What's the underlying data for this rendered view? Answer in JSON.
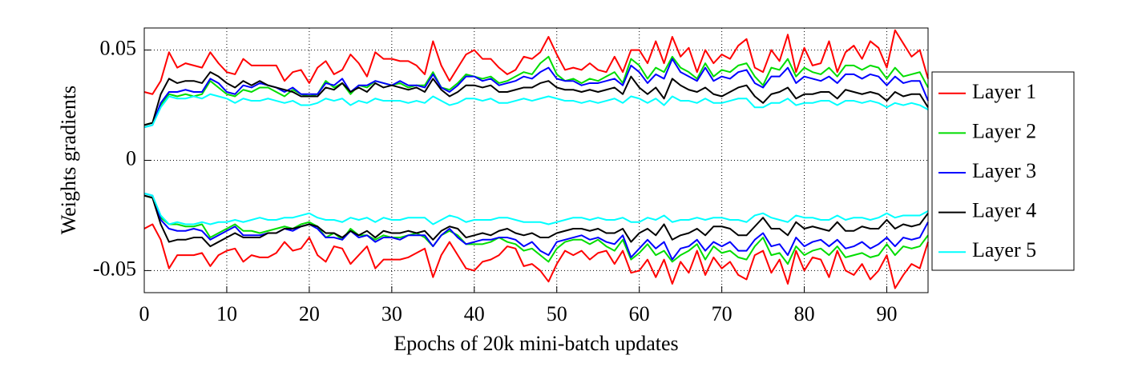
{
  "chart_data": {
    "type": "line",
    "xlabel": "Epochs of 20k mini-batch updates",
    "ylabel": "Weights gradients",
    "xlim": [
      0,
      95
    ],
    "xticks": [
      0,
      10,
      20,
      30,
      40,
      50,
      60,
      70,
      80,
      90
    ],
    "ylim": [
      -0.06,
      0.06
    ],
    "yticks": [
      -0.05,
      0,
      0.05
    ],
    "grid": true,
    "legend": "right",
    "x": [
      0,
      1,
      2,
      3,
      4,
      5,
      6,
      7,
      8,
      9,
      10,
      11,
      12,
      13,
      14,
      15,
      16,
      17,
      18,
      19,
      20,
      21,
      22,
      23,
      24,
      25,
      26,
      27,
      28,
      29,
      30,
      31,
      32,
      33,
      34,
      35,
      36,
      37,
      38,
      39,
      40,
      41,
      42,
      43,
      44,
      45,
      46,
      47,
      48,
      49,
      50,
      51,
      52,
      53,
      54,
      55,
      56,
      57,
      58,
      59,
      60,
      61,
      62,
      63,
      64,
      65,
      66,
      67,
      68,
      69,
      70,
      71,
      72,
      73,
      74,
      75,
      76,
      77,
      78,
      79,
      80,
      81,
      82,
      83,
      84,
      85,
      86,
      87,
      88,
      89,
      90,
      91,
      92,
      93,
      94,
      95
    ],
    "series": [
      {
        "name": "Layer 1",
        "color": "#ff0000",
        "values": [
          0.031,
          0.03,
          0.036,
          0.049,
          0.042,
          0.044,
          0.043,
          0.042,
          0.049,
          0.044,
          0.04,
          0.039,
          0.046,
          0.043,
          0.043,
          0.043,
          0.043,
          0.036,
          0.04,
          0.041,
          0.035,
          0.042,
          0.045,
          0.039,
          0.041,
          0.048,
          0.044,
          0.038,
          0.049,
          0.046,
          0.046,
          0.045,
          0.045,
          0.043,
          0.039,
          0.054,
          0.043,
          0.036,
          0.042,
          0.048,
          0.05,
          0.046,
          0.046,
          0.042,
          0.039,
          0.041,
          0.047,
          0.046,
          0.049,
          0.056,
          0.048,
          0.041,
          0.042,
          0.041,
          0.044,
          0.041,
          0.04,
          0.047,
          0.04,
          0.05,
          0.05,
          0.044,
          0.054,
          0.044,
          0.056,
          0.047,
          0.051,
          0.04,
          0.05,
          0.044,
          0.048,
          0.046,
          0.052,
          0.055,
          0.042,
          0.04,
          0.05,
          0.045,
          0.057,
          0.04,
          0.051,
          0.043,
          0.044,
          0.054,
          0.04,
          0.049,
          0.052,
          0.046,
          0.054,
          0.051,
          0.042,
          0.059,
          0.053,
          0.047,
          0.05,
          0.037
        ],
        "values_lower": [
          -0.031,
          -0.029,
          -0.036,
          -0.049,
          -0.043,
          -0.043,
          -0.043,
          -0.042,
          -0.048,
          -0.043,
          -0.041,
          -0.04,
          -0.046,
          -0.043,
          -0.044,
          -0.044,
          -0.042,
          -0.037,
          -0.041,
          -0.04,
          -0.035,
          -0.043,
          -0.046,
          -0.039,
          -0.04,
          -0.047,
          -0.043,
          -0.039,
          -0.049,
          -0.045,
          -0.045,
          -0.045,
          -0.044,
          -0.042,
          -0.04,
          -0.053,
          -0.043,
          -0.037,
          -0.043,
          -0.049,
          -0.05,
          -0.046,
          -0.045,
          -0.043,
          -0.039,
          -0.04,
          -0.048,
          -0.047,
          -0.05,
          -0.055,
          -0.047,
          -0.041,
          -0.043,
          -0.041,
          -0.045,
          -0.042,
          -0.041,
          -0.047,
          -0.041,
          -0.051,
          -0.05,
          -0.045,
          -0.053,
          -0.045,
          -0.056,
          -0.046,
          -0.051,
          -0.041,
          -0.052,
          -0.044,
          -0.049,
          -0.046,
          -0.052,
          -0.054,
          -0.043,
          -0.041,
          -0.051,
          -0.045,
          -0.056,
          -0.041,
          -0.05,
          -0.044,
          -0.045,
          -0.053,
          -0.041,
          -0.05,
          -0.052,
          -0.047,
          -0.054,
          -0.05,
          -0.043,
          -0.058,
          -0.052,
          -0.047,
          -0.049,
          -0.037
        ]
      },
      {
        "name": "Layer 2",
        "color": "#00dd00",
        "values": [
          0.016,
          0.017,
          0.025,
          0.03,
          0.029,
          0.03,
          0.029,
          0.03,
          0.036,
          0.033,
          0.03,
          0.029,
          0.032,
          0.031,
          0.033,
          0.033,
          0.031,
          0.029,
          0.032,
          0.03,
          0.029,
          0.03,
          0.036,
          0.033,
          0.035,
          0.03,
          0.034,
          0.033,
          0.036,
          0.035,
          0.034,
          0.035,
          0.033,
          0.034,
          0.034,
          0.04,
          0.033,
          0.032,
          0.035,
          0.039,
          0.038,
          0.037,
          0.038,
          0.035,
          0.036,
          0.038,
          0.04,
          0.039,
          0.044,
          0.047,
          0.039,
          0.036,
          0.037,
          0.035,
          0.037,
          0.036,
          0.038,
          0.04,
          0.035,
          0.046,
          0.043,
          0.037,
          0.042,
          0.04,
          0.047,
          0.042,
          0.04,
          0.037,
          0.044,
          0.038,
          0.041,
          0.04,
          0.043,
          0.044,
          0.038,
          0.034,
          0.042,
          0.041,
          0.046,
          0.038,
          0.042,
          0.04,
          0.039,
          0.042,
          0.038,
          0.043,
          0.043,
          0.041,
          0.043,
          0.042,
          0.037,
          0.042,
          0.038,
          0.039,
          0.04,
          0.033
        ],
        "values_lower": [
          -0.016,
          -0.017,
          -0.026,
          -0.029,
          -0.029,
          -0.03,
          -0.03,
          -0.029,
          -0.035,
          -0.033,
          -0.031,
          -0.029,
          -0.032,
          -0.032,
          -0.033,
          -0.032,
          -0.031,
          -0.03,
          -0.031,
          -0.029,
          -0.028,
          -0.03,
          -0.035,
          -0.033,
          -0.036,
          -0.031,
          -0.034,
          -0.034,
          -0.036,
          -0.034,
          -0.035,
          -0.035,
          -0.034,
          -0.033,
          -0.035,
          -0.039,
          -0.034,
          -0.032,
          -0.034,
          -0.038,
          -0.038,
          -0.038,
          -0.037,
          -0.035,
          -0.037,
          -0.038,
          -0.041,
          -0.04,
          -0.043,
          -0.046,
          -0.04,
          -0.037,
          -0.036,
          -0.036,
          -0.038,
          -0.036,
          -0.039,
          -0.041,
          -0.036,
          -0.045,
          -0.042,
          -0.038,
          -0.043,
          -0.041,
          -0.046,
          -0.043,
          -0.041,
          -0.038,
          -0.045,
          -0.039,
          -0.042,
          -0.041,
          -0.044,
          -0.045,
          -0.039,
          -0.035,
          -0.043,
          -0.042,
          -0.047,
          -0.039,
          -0.043,
          -0.041,
          -0.04,
          -0.043,
          -0.039,
          -0.044,
          -0.043,
          -0.042,
          -0.044,
          -0.043,
          -0.038,
          -0.043,
          -0.039,
          -0.04,
          -0.039,
          -0.034
        ]
      },
      {
        "name": "Layer 3",
        "color": "#0000ff",
        "values": [
          0.015,
          0.016,
          0.026,
          0.031,
          0.031,
          0.032,
          0.031,
          0.031,
          0.037,
          0.035,
          0.031,
          0.03,
          0.034,
          0.033,
          0.035,
          0.034,
          0.033,
          0.031,
          0.033,
          0.03,
          0.03,
          0.03,
          0.035,
          0.034,
          0.037,
          0.031,
          0.034,
          0.034,
          0.036,
          0.035,
          0.034,
          0.036,
          0.034,
          0.034,
          0.033,
          0.039,
          0.033,
          0.031,
          0.034,
          0.038,
          0.038,
          0.036,
          0.037,
          0.034,
          0.035,
          0.036,
          0.038,
          0.037,
          0.04,
          0.042,
          0.037,
          0.036,
          0.036,
          0.034,
          0.035,
          0.035,
          0.036,
          0.037,
          0.034,
          0.043,
          0.04,
          0.035,
          0.039,
          0.037,
          0.046,
          0.04,
          0.038,
          0.036,
          0.042,
          0.036,
          0.038,
          0.037,
          0.04,
          0.041,
          0.035,
          0.033,
          0.038,
          0.038,
          0.042,
          0.035,
          0.038,
          0.037,
          0.036,
          0.038,
          0.035,
          0.039,
          0.039,
          0.037,
          0.039,
          0.038,
          0.034,
          0.038,
          0.035,
          0.036,
          0.036,
          0.027
        ],
        "values_lower": [
          -0.015,
          -0.016,
          -0.027,
          -0.031,
          -0.032,
          -0.032,
          -0.031,
          -0.032,
          -0.036,
          -0.034,
          -0.032,
          -0.03,
          -0.034,
          -0.034,
          -0.034,
          -0.033,
          -0.033,
          -0.031,
          -0.032,
          -0.03,
          -0.029,
          -0.031,
          -0.035,
          -0.035,
          -0.036,
          -0.032,
          -0.035,
          -0.034,
          -0.037,
          -0.035,
          -0.035,
          -0.036,
          -0.034,
          -0.034,
          -0.034,
          -0.039,
          -0.034,
          -0.031,
          -0.035,
          -0.038,
          -0.037,
          -0.036,
          -0.036,
          -0.035,
          -0.035,
          -0.036,
          -0.039,
          -0.037,
          -0.041,
          -0.043,
          -0.037,
          -0.036,
          -0.035,
          -0.034,
          -0.036,
          -0.035,
          -0.037,
          -0.038,
          -0.034,
          -0.044,
          -0.04,
          -0.036,
          -0.04,
          -0.037,
          -0.045,
          -0.04,
          -0.039,
          -0.036,
          -0.041,
          -0.037,
          -0.039,
          -0.037,
          -0.041,
          -0.041,
          -0.036,
          -0.033,
          -0.039,
          -0.038,
          -0.043,
          -0.035,
          -0.039,
          -0.037,
          -0.036,
          -0.039,
          -0.036,
          -0.04,
          -0.039,
          -0.037,
          -0.04,
          -0.038,
          -0.035,
          -0.039,
          -0.035,
          -0.036,
          -0.035,
          -0.028
        ]
      },
      {
        "name": "Layer 4",
        "color": "#000000",
        "values": [
          0.016,
          0.017,
          0.03,
          0.037,
          0.035,
          0.036,
          0.036,
          0.035,
          0.04,
          0.038,
          0.035,
          0.033,
          0.036,
          0.034,
          0.036,
          0.034,
          0.033,
          0.032,
          0.031,
          0.029,
          0.029,
          0.029,
          0.033,
          0.032,
          0.035,
          0.031,
          0.033,
          0.031,
          0.035,
          0.033,
          0.034,
          0.033,
          0.032,
          0.033,
          0.031,
          0.037,
          0.032,
          0.029,
          0.031,
          0.034,
          0.034,
          0.033,
          0.034,
          0.031,
          0.031,
          0.032,
          0.033,
          0.033,
          0.035,
          0.036,
          0.033,
          0.032,
          0.032,
          0.031,
          0.032,
          0.031,
          0.032,
          0.033,
          0.03,
          0.038,
          0.033,
          0.03,
          0.033,
          0.028,
          0.037,
          0.034,
          0.032,
          0.031,
          0.033,
          0.03,
          0.029,
          0.031,
          0.033,
          0.034,
          0.029,
          0.026,
          0.03,
          0.031,
          0.033,
          0.028,
          0.03,
          0.03,
          0.031,
          0.031,
          0.028,
          0.032,
          0.031,
          0.03,
          0.031,
          0.03,
          0.027,
          0.031,
          0.029,
          0.03,
          0.03,
          0.024
        ],
        "values_lower": [
          -0.016,
          -0.017,
          -0.029,
          -0.037,
          -0.036,
          -0.036,
          -0.035,
          -0.035,
          -0.039,
          -0.037,
          -0.035,
          -0.033,
          -0.035,
          -0.035,
          -0.035,
          -0.033,
          -0.033,
          -0.031,
          -0.031,
          -0.03,
          -0.029,
          -0.03,
          -0.033,
          -0.033,
          -0.035,
          -0.032,
          -0.034,
          -0.032,
          -0.035,
          -0.032,
          -0.033,
          -0.033,
          -0.032,
          -0.033,
          -0.032,
          -0.036,
          -0.032,
          -0.03,
          -0.031,
          -0.035,
          -0.034,
          -0.033,
          -0.034,
          -0.032,
          -0.031,
          -0.033,
          -0.034,
          -0.033,
          -0.035,
          -0.035,
          -0.033,
          -0.032,
          -0.031,
          -0.031,
          -0.032,
          -0.031,
          -0.033,
          -0.033,
          -0.031,
          -0.037,
          -0.033,
          -0.031,
          -0.034,
          -0.029,
          -0.036,
          -0.034,
          -0.033,
          -0.031,
          -0.034,
          -0.03,
          -0.03,
          -0.031,
          -0.034,
          -0.034,
          -0.03,
          -0.026,
          -0.031,
          -0.031,
          -0.034,
          -0.028,
          -0.031,
          -0.03,
          -0.031,
          -0.032,
          -0.028,
          -0.032,
          -0.032,
          -0.03,
          -0.031,
          -0.031,
          -0.027,
          -0.031,
          -0.029,
          -0.03,
          -0.029,
          -0.024
        ]
      },
      {
        "name": "Layer 5",
        "color": "#00ffff",
        "values": [
          0.015,
          0.016,
          0.024,
          0.029,
          0.028,
          0.028,
          0.029,
          0.028,
          0.03,
          0.029,
          0.028,
          0.026,
          0.028,
          0.027,
          0.027,
          0.028,
          0.027,
          0.026,
          0.027,
          0.025,
          0.025,
          0.026,
          0.028,
          0.027,
          0.028,
          0.025,
          0.027,
          0.026,
          0.028,
          0.027,
          0.027,
          0.027,
          0.026,
          0.027,
          0.026,
          0.029,
          0.027,
          0.025,
          0.026,
          0.028,
          0.028,
          0.027,
          0.028,
          0.026,
          0.026,
          0.027,
          0.028,
          0.027,
          0.028,
          0.029,
          0.028,
          0.027,
          0.027,
          0.026,
          0.027,
          0.026,
          0.027,
          0.028,
          0.026,
          0.029,
          0.028,
          0.026,
          0.028,
          0.025,
          0.029,
          0.027,
          0.027,
          0.026,
          0.028,
          0.026,
          0.026,
          0.027,
          0.028,
          0.028,
          0.024,
          0.024,
          0.026,
          0.026,
          0.028,
          0.025,
          0.026,
          0.026,
          0.027,
          0.027,
          0.025,
          0.027,
          0.027,
          0.026,
          0.027,
          0.026,
          0.024,
          0.026,
          0.025,
          0.026,
          0.025,
          0.023
        ],
        "values_lower": [
          -0.015,
          -0.016,
          -0.025,
          -0.029,
          -0.028,
          -0.029,
          -0.029,
          -0.028,
          -0.029,
          -0.028,
          -0.028,
          -0.027,
          -0.028,
          -0.027,
          -0.026,
          -0.027,
          -0.027,
          -0.026,
          -0.026,
          -0.025,
          -0.024,
          -0.026,
          -0.027,
          -0.027,
          -0.028,
          -0.026,
          -0.027,
          -0.026,
          -0.028,
          -0.026,
          -0.027,
          -0.027,
          -0.026,
          -0.026,
          -0.026,
          -0.029,
          -0.027,
          -0.025,
          -0.026,
          -0.028,
          -0.027,
          -0.027,
          -0.027,
          -0.026,
          -0.026,
          -0.027,
          -0.028,
          -0.028,
          -0.028,
          -0.029,
          -0.028,
          -0.027,
          -0.026,
          -0.026,
          -0.027,
          -0.026,
          -0.027,
          -0.027,
          -0.026,
          -0.028,
          -0.028,
          -0.026,
          -0.027,
          -0.025,
          -0.028,
          -0.027,
          -0.027,
          -0.026,
          -0.027,
          -0.026,
          -0.026,
          -0.027,
          -0.027,
          -0.028,
          -0.025,
          -0.024,
          -0.026,
          -0.027,
          -0.028,
          -0.025,
          -0.026,
          -0.026,
          -0.027,
          -0.027,
          -0.025,
          -0.027,
          -0.026,
          -0.026,
          -0.027,
          -0.026,
          -0.024,
          -0.026,
          -0.025,
          -0.025,
          -0.025,
          -0.023
        ]
      }
    ]
  }
}
